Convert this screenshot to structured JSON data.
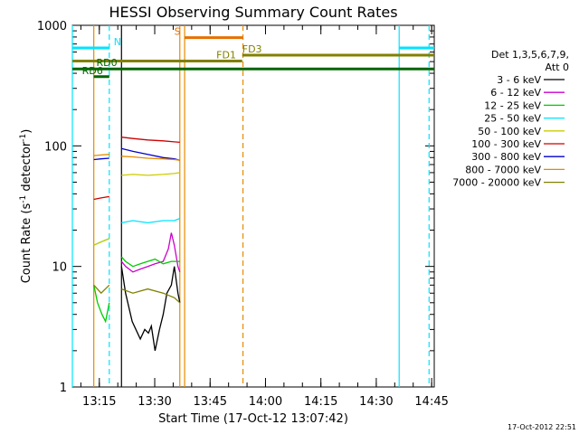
{
  "chart_data": {
    "type": "line",
    "title": "HESSI Observing Summary Count Rates",
    "xlabel": "Start Time (17-Oct-12 13:07:42)",
    "ylabel_main": "Count Rate (s",
    "ylabel_sup1": "-1",
    "ylabel_mid": " detector",
    "ylabel_sup2": "-1",
    "ylabel_end": ")",
    "yscale": "log",
    "ylim": [
      1,
      1000
    ],
    "xlim_minutes": [
      0,
      98
    ],
    "x_ticks": [
      {
        "label": "13:15",
        "minute": 7.3
      },
      {
        "label": "13:30",
        "minute": 22.3
      },
      {
        "label": "13:45",
        "minute": 37.3
      },
      {
        "label": "14:00",
        "minute": 52.3
      },
      {
        "label": "14:15",
        "minute": 67.3
      },
      {
        "label": "14:30",
        "minute": 82.3
      },
      {
        "label": "14:45",
        "minute": 97.3
      }
    ],
    "y_ticks": [
      {
        "label": "1",
        "value": 1
      },
      {
        "label": "10",
        "value": 10
      },
      {
        "label": "100",
        "value": 100
      },
      {
        "label": "1000",
        "value": 1000
      }
    ],
    "legend_title_1": "Det 1,3,5,6,7,9,",
    "legend_title_2": "Att 0",
    "series": [
      {
        "name": "3 - 6 keV",
        "color": "#000000",
        "segments": [
          [
            [
              13.3,
              10
            ],
            [
              14.4,
              6
            ],
            [
              16.2,
              3.5
            ],
            [
              18.4,
              2.5
            ],
            [
              19.6,
              3
            ],
            [
              20.6,
              2.8
            ],
            [
              21.4,
              3.2
            ],
            [
              22.4,
              2
            ],
            [
              23.6,
              3
            ],
            [
              24.6,
              4
            ],
            [
              25.6,
              6
            ],
            [
              26.8,
              7
            ],
            [
              27.6,
              10
            ],
            [
              28.6,
              6
            ],
            [
              29.1,
              5
            ]
          ]
        ]
      },
      {
        "name": "6 - 12 keV",
        "color": "#cc00cc",
        "segments": [
          [
            [
              13.3,
              11
            ],
            [
              14.4,
              10
            ],
            [
              16.4,
              9
            ],
            [
              18.4,
              9.5
            ],
            [
              20.4,
              10
            ],
            [
              22.4,
              10.5
            ],
            [
              24.6,
              11
            ],
            [
              26.0,
              14
            ],
            [
              26.8,
              19
            ],
            [
              27.6,
              15
            ],
            [
              28.6,
              10
            ],
            [
              29.1,
              9
            ]
          ]
        ]
      },
      {
        "name": "12 - 25 keV",
        "color": "#00cc00",
        "segments": [
          [
            [
              5.8,
              7
            ],
            [
              6.8,
              5
            ],
            [
              8.0,
              4
            ],
            [
              9.0,
              3.5
            ],
            [
              10.0,
              5
            ]
          ],
          [
            [
              13.3,
              12
            ],
            [
              14.4,
              11
            ],
            [
              16.4,
              10
            ],
            [
              18.4,
              10.5
            ],
            [
              20.4,
              11
            ],
            [
              22.4,
              11.5
            ],
            [
              24.6,
              10.5
            ],
            [
              26.8,
              11
            ],
            [
              29.1,
              11
            ]
          ]
        ]
      },
      {
        "name": "25 - 50 keV",
        "color": "#00e5ff",
        "segments": [
          [
            [
              5.8,
              15
            ],
            [
              7.8,
              16
            ],
            [
              10.0,
              17
            ]
          ],
          [
            [
              13.3,
              23
            ],
            [
              16.4,
              24
            ],
            [
              20.4,
              23
            ],
            [
              24.6,
              24
            ],
            [
              27.6,
              24
            ],
            [
              29.1,
              25
            ]
          ]
        ]
      },
      {
        "name": "50 - 100 keV",
        "color": "#cccc00",
        "segments": [
          [
            [
              5.8,
              15
            ],
            [
              7.8,
              16
            ],
            [
              10.0,
              17
            ]
          ],
          [
            [
              13.3,
              57
            ],
            [
              16.4,
              58
            ],
            [
              20.4,
              57
            ],
            [
              24.6,
              58
            ],
            [
              27.6,
              59
            ],
            [
              29.1,
              60
            ]
          ]
        ]
      },
      {
        "name": "100 - 300 keV",
        "color": "#cc0000",
        "segments": [
          [
            [
              5.8,
              36
            ],
            [
              7.8,
              37
            ],
            [
              10.0,
              38
            ]
          ],
          [
            [
              13.3,
              118
            ],
            [
              16.4,
              115
            ],
            [
              20.4,
              112
            ],
            [
              24.6,
              110
            ],
            [
              27.6,
              108
            ],
            [
              29.1,
              107
            ]
          ]
        ]
      },
      {
        "name": "300 - 800 keV",
        "color": "#0000cc",
        "segments": [
          [
            [
              5.8,
              77
            ],
            [
              7.8,
              78
            ],
            [
              10.0,
              79
            ]
          ],
          [
            [
              13.3,
              95
            ],
            [
              16.4,
              90
            ],
            [
              20.4,
              85
            ],
            [
              24.6,
              80
            ],
            [
              27.6,
              78
            ],
            [
              29.1,
              76
            ]
          ]
        ]
      },
      {
        "name": "800 - 7000 keV",
        "color": "#e68a00",
        "segments": [
          [
            [
              5.8,
              83
            ],
            [
              7.8,
              84
            ],
            [
              10.0,
              85
            ]
          ],
          [
            [
              13.3,
              82
            ],
            [
              16.4,
              81
            ],
            [
              20.4,
              79
            ],
            [
              24.6,
              78
            ],
            [
              27.6,
              77
            ],
            [
              29.1,
              76
            ]
          ]
        ]
      },
      {
        "name": "7000 - 20000 keV",
        "color": "#808000",
        "segments": [
          [
            [
              5.8,
              7
            ],
            [
              7.8,
              6
            ],
            [
              10.0,
              7
            ]
          ],
          [
            [
              13.3,
              6.5
            ],
            [
              16.4,
              6
            ],
            [
              20.4,
              6.5
            ],
            [
              24.6,
              6
            ],
            [
              27.6,
              5.5
            ],
            [
              29.1,
              5
            ]
          ]
        ]
      }
    ],
    "flag_bars": [
      {
        "label": "N",
        "color": "#00e5ff",
        "value": 650,
        "x_start": 0.0,
        "x_end": 10.0,
        "label_minute": 11.2
      },
      {
        "label": "",
        "color": "#00e5ff",
        "value": 650,
        "x_start": 88.5,
        "x_end": 98.0,
        "label_minute": null
      },
      {
        "label": "S",
        "color": "#e66f00",
        "value": 790,
        "x_start": 30.4,
        "x_end": 46.2,
        "label_minute": 27.6
      },
      {
        "label": "FD1",
        "color": "#808000",
        "value": 505,
        "x_start": 0.0,
        "x_end": 46.0,
        "label_minute": 39.0
      },
      {
        "label": "FD3",
        "color": "#808000",
        "value": 565,
        "x_start": 46.0,
        "x_end": 98.0,
        "label_minute": 46.0
      },
      {
        "label": "RD0",
        "color": "#006600",
        "value": 435,
        "x_start": 0.0,
        "x_end": 98.0,
        "label_minute": 6.5
      },
      {
        "label": "RD6",
        "color": "#006600",
        "value": 375,
        "x_start": 5.8,
        "x_end": 10.0,
        "label_minute": 2.6
      }
    ],
    "vertical_lines": [
      {
        "minute": 0.0,
        "color": "#00e5ff",
        "style": "solid"
      },
      {
        "minute": 10.0,
        "color": "#00e5ff",
        "style": "dashed"
      },
      {
        "minute": 88.5,
        "color": "#00e5ff",
        "style": "solid"
      },
      {
        "minute": 96.6,
        "color": "#00e5ff",
        "style": "dashed"
      },
      {
        "minute": 5.8,
        "color": "#e68a00",
        "style": "solid"
      },
      {
        "minute": 29.1,
        "color": "#e68a00",
        "style": "solid"
      },
      {
        "minute": 30.4,
        "color": "#e68a00",
        "style": "solid"
      },
      {
        "minute": 46.2,
        "color": "#e68a00",
        "style": "dashed"
      },
      {
        "minute": 13.3,
        "color": "#000000",
        "style": "solid"
      }
    ]
  },
  "timestamp": "17-Oct-2012 22:51"
}
